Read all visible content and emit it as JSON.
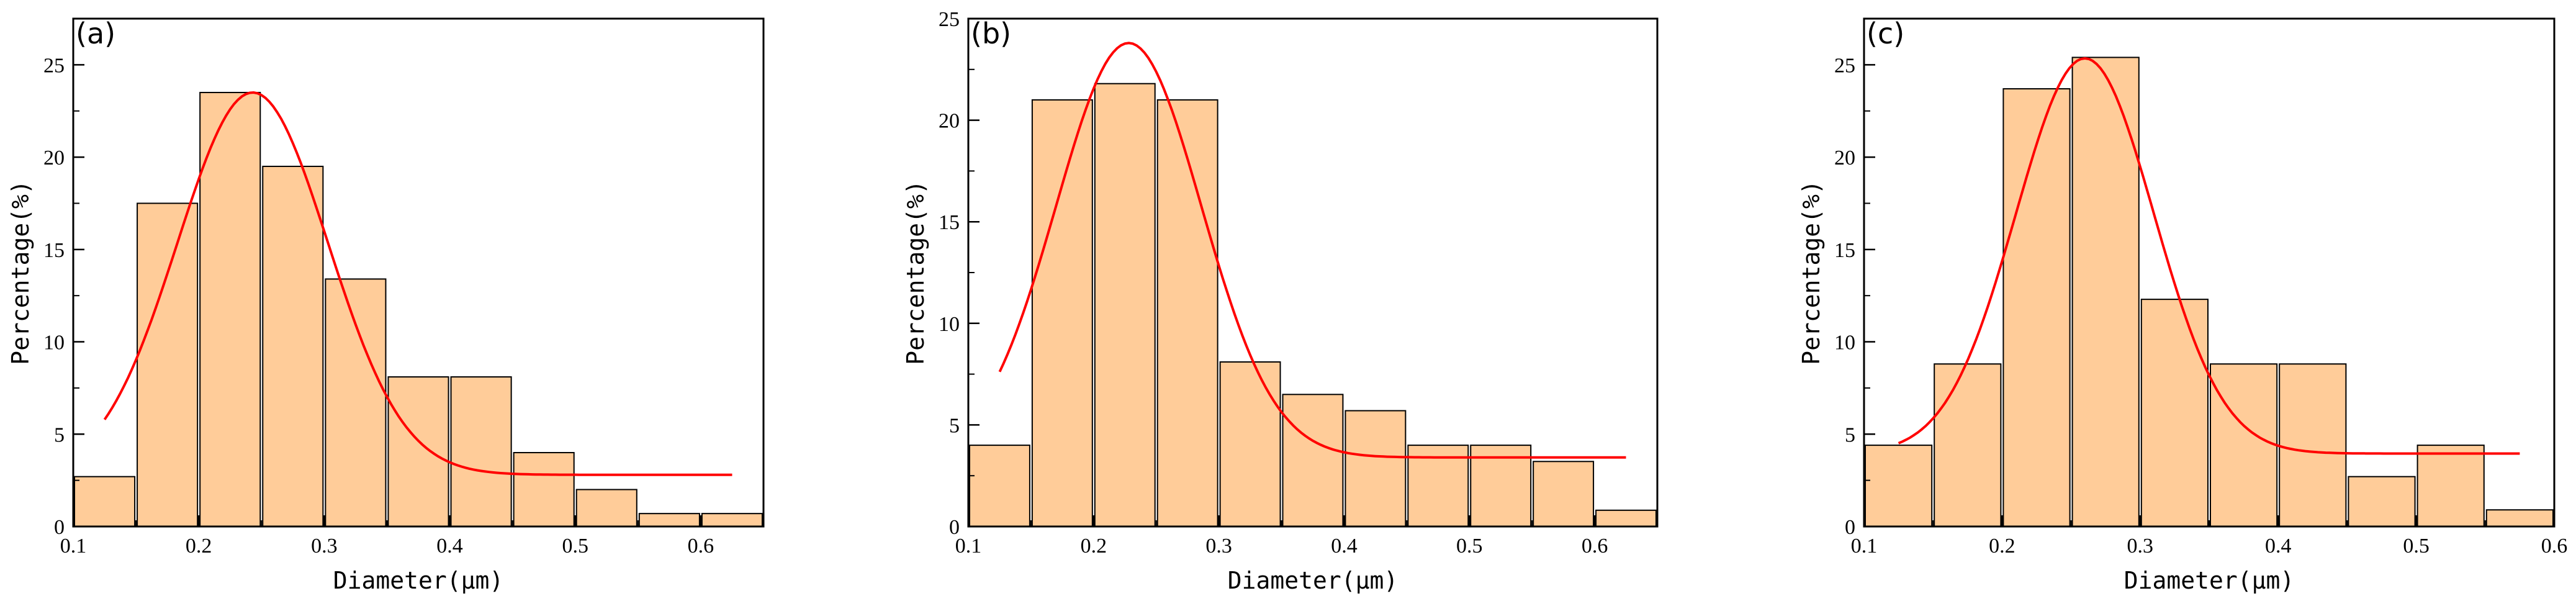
{
  "chart_data": [
    {
      "type": "bar",
      "panel_label": "(a)",
      "xlabel": "Diameter(μm)",
      "ylabel": "Percentage(%)",
      "xlim": [
        0.1,
        0.65
      ],
      "ylim": [
        0,
        27.5
      ],
      "xticks": [
        "0.1",
        "0.2",
        "0.3",
        "0.4",
        "0.5",
        "0.6"
      ],
      "yticks": [
        "0",
        "5",
        "10",
        "15",
        "20",
        "25"
      ],
      "bin_width": 0.05,
      "bins": [
        0.1,
        0.15,
        0.2,
        0.25,
        0.3,
        0.35,
        0.4,
        0.45,
        0.5,
        0.55,
        0.6
      ],
      "values": [
        2.7,
        17.5,
        23.5,
        19.5,
        13.4,
        8.1,
        8.1,
        4.0,
        2.0,
        0.7,
        0.7
      ],
      "fit": {
        "baseline": 2.8,
        "amplitude": 20.7,
        "center": 0.243,
        "sigma": 0.06,
        "x_range": [
          0.125,
          0.625
        ]
      },
      "bar_color": "#FFCC99",
      "fit_color": "#FF0000",
      "grid": false
    },
    {
      "type": "bar",
      "panel_label": "(b)",
      "xlabel": "Diameter(μm)",
      "ylabel": "Percentage(%)",
      "xlim": [
        0.1,
        0.65
      ],
      "ylim": [
        0,
        25
      ],
      "xticks": [
        "0.1",
        "0.2",
        "0.3",
        "0.4",
        "0.5",
        "0.6"
      ],
      "yticks": [
        "0",
        "5",
        "10",
        "15",
        "20",
        "25"
      ],
      "bin_width": 0.05,
      "bins": [
        0.1,
        0.15,
        0.2,
        0.25,
        0.3,
        0.35,
        0.4,
        0.45,
        0.5,
        0.55,
        0.6
      ],
      "values": [
        4.0,
        21.0,
        21.8,
        21.0,
        8.1,
        6.5,
        5.7,
        4.0,
        4.0,
        3.2,
        0.8
      ],
      "fit": {
        "baseline": 3.4,
        "amplitude": 20.4,
        "center": 0.228,
        "sigma": 0.058,
        "x_range": [
          0.125,
          0.625
        ]
      },
      "bar_color": "#FFCC99",
      "fit_color": "#FF0000",
      "grid": false
    },
    {
      "type": "bar",
      "panel_label": "(c)",
      "xlabel": "Diameter(μm)",
      "ylabel": "Percentage(%)",
      "xlim": [
        0.1,
        0.6
      ],
      "ylim": [
        0,
        27.5
      ],
      "xticks": [
        "0.1",
        "0.2",
        "0.3",
        "0.4",
        "0.5",
        "0.6"
      ],
      "yticks": [
        "0",
        "5",
        "10",
        "15",
        "20",
        "25"
      ],
      "bin_width": 0.05,
      "bins": [
        0.1,
        0.15,
        0.2,
        0.25,
        0.3,
        0.35,
        0.4,
        0.45,
        0.5,
        0.55
      ],
      "values": [
        4.4,
        8.8,
        23.7,
        25.4,
        12.3,
        8.8,
        8.8,
        2.7,
        4.4,
        0.9
      ],
      "fit": {
        "baseline": 3.95,
        "amplitude": 21.4,
        "center": 0.26,
        "sigma": 0.05,
        "x_range": [
          0.125,
          0.575
        ]
      },
      "bar_color": "#FFCC99",
      "fit_color": "#FF0000",
      "grid": false
    }
  ]
}
